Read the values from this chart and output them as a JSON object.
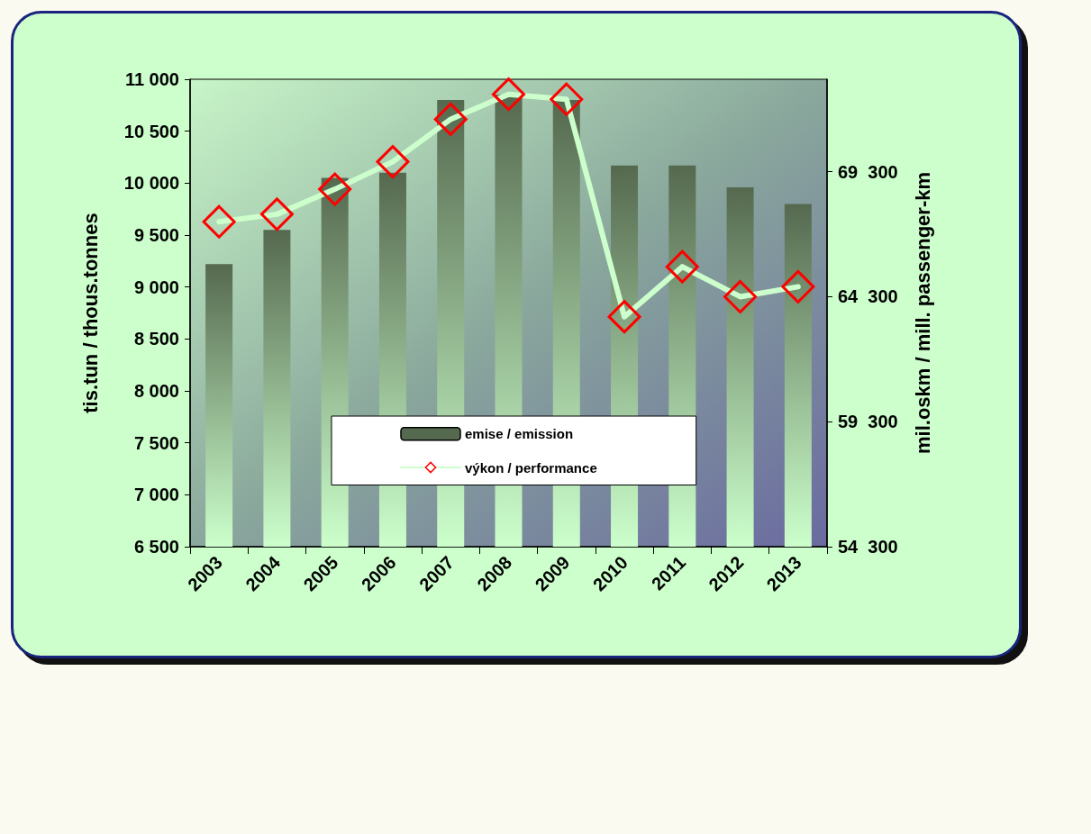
{
  "chart_data": {
    "type": "bar",
    "categories": [
      "2003",
      "2004",
      "2005",
      "2006",
      "2007",
      "2008",
      "2009",
      "2010",
      "2011",
      "2012",
      "2013"
    ],
    "ylabel": "tis.tun / thous.tonnes",
    "y2label": "mil.oskm / mill. passenger-km",
    "series": [
      {
        "name": "emise / emission",
        "color": "#55694f",
        "values": [
          9220,
          9550,
          10050,
          10100,
          10800,
          10850,
          10800,
          10170,
          10170,
          9960,
          9800
        ]
      },
      {
        "name": "výkon / performance",
        "type": "line",
        "axis": "y2",
        "color": "#ccffcc",
        "values": [
          67300,
          67600,
          68600,
          69700,
          71400,
          72400,
          72200,
          63500,
          65500,
          64300,
          64700
        ]
      }
    ],
    "ylim": [
      6500,
      11000
    ],
    "yticks": [
      {
        "value": 6500,
        "label": "6 500"
      },
      {
        "value": 7000,
        "label": "7 000"
      },
      {
        "value": 7500,
        "label": "7 500"
      },
      {
        "value": 8000,
        "label": "8 000"
      },
      {
        "value": 8500,
        "label": "8 500"
      },
      {
        "value": 9000,
        "label": "9 000"
      },
      {
        "value": 9500,
        "label": "9 500"
      },
      {
        "value": 10000,
        "label": "10 000"
      },
      {
        "value": 10500,
        "label": "10 500"
      },
      {
        "value": 11000,
        "label": "11 000"
      }
    ],
    "y2lim": [
      54300,
      73000
    ],
    "y2ticks": [
      {
        "value": 54300,
        "label": "54  300"
      },
      {
        "value": 59300,
        "label": "59  300"
      },
      {
        "value": 64300,
        "label": "64  300"
      },
      {
        "value": 69300,
        "label": "69  300"
      }
    ],
    "marker": "diamond",
    "grid": false,
    "legend": "bottom"
  }
}
